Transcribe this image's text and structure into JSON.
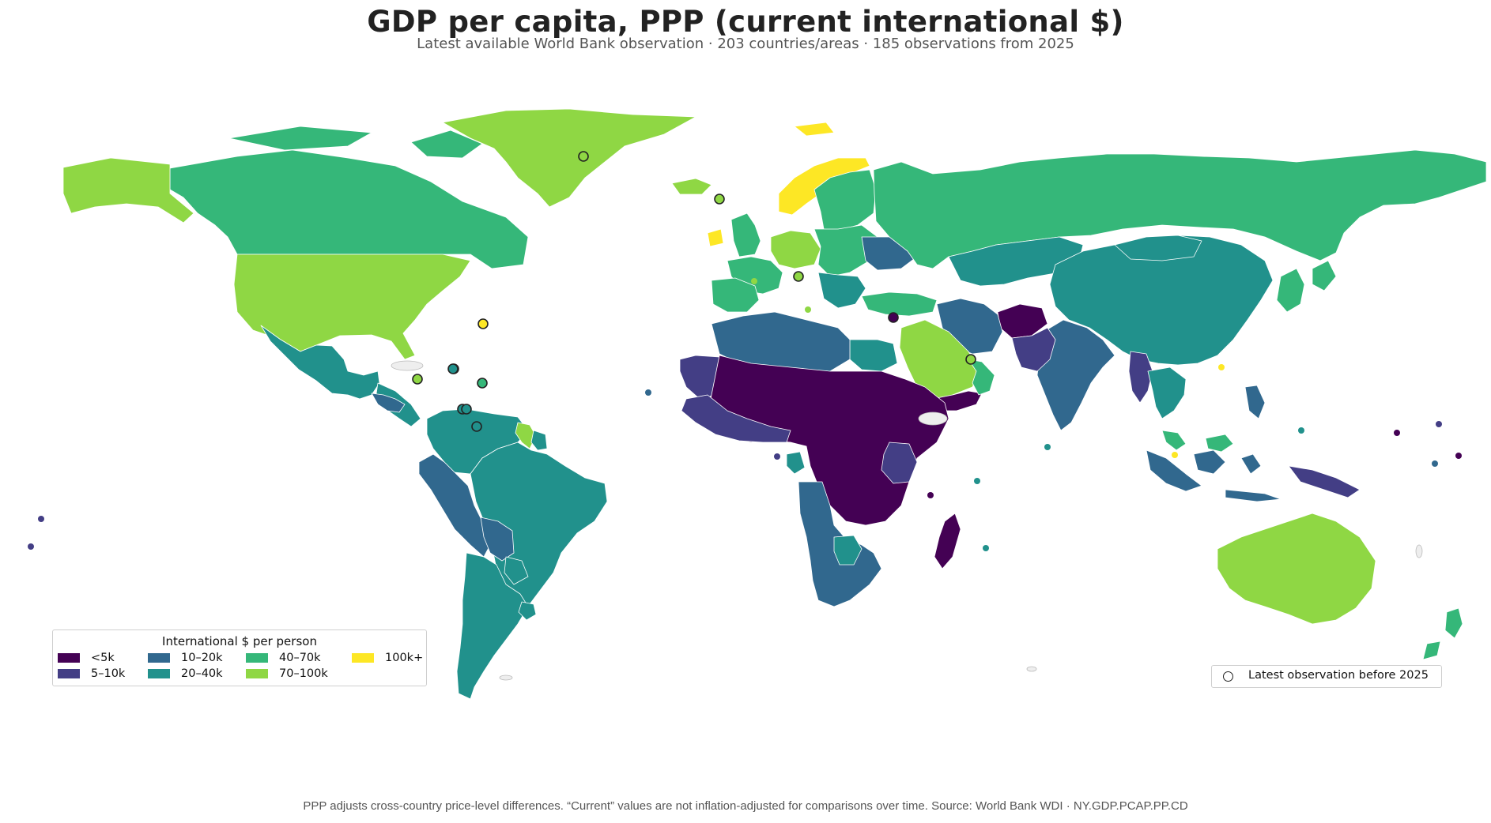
{
  "title": "GDP per capita, PPP (current international $)",
  "subtitle": "Latest available World Bank observation · 203 countries/areas · 185 observations from 2025",
  "footer": "PPP adjusts cross-country price-level differences. “Current” values are not inflation-adjusted for comparisons over time. Source: World Bank WDI · NY.GDP.PCAP.PP.CD",
  "legend": {
    "title": "International $ per person",
    "items": [
      {
        "label": "<5k",
        "color": "#440154"
      },
      {
        "label": "5–10k",
        "color": "#433e85"
      },
      {
        "label": "10–20k",
        "color": "#31688e"
      },
      {
        "label": "20–40k",
        "color": "#21918c"
      },
      {
        "label": "40–70k",
        "color": "#35b779"
      },
      {
        "label": "70–100k",
        "color": "#8fd744"
      },
      {
        "label": "100k+",
        "color": "#fde725"
      }
    ]
  },
  "marker_legend": {
    "label": "Latest observation before 2025"
  },
  "colors": {
    "no_data": "#eeeeee",
    "border": "#ffffff",
    "marker_stroke": "#222222"
  },
  "regions": [
    {
      "name": "Canada",
      "class": "40–70k"
    },
    {
      "name": "Alaska (United States)",
      "class": "70–100k"
    },
    {
      "name": "United States",
      "class": "70–100k"
    },
    {
      "name": "Greenland",
      "class": "70–100k"
    },
    {
      "name": "Mexico",
      "class": "20–40k"
    },
    {
      "name": "Central America",
      "class": "20–40k"
    },
    {
      "name": "Guatemala/Honduras",
      "class": "10–20k"
    },
    {
      "name": "Colombia/Venezuela",
      "class": "20–40k"
    },
    {
      "name": "Guyana",
      "class": "70–100k"
    },
    {
      "name": "Suriname",
      "class": "20–40k"
    },
    {
      "name": "Ecuador/Peru",
      "class": "10–20k"
    },
    {
      "name": "Brazil",
      "class": "20–40k"
    },
    {
      "name": "Bolivia",
      "class": "10–20k"
    },
    {
      "name": "Paraguay",
      "class": "20–40k"
    },
    {
      "name": "Chile/Argentina",
      "class": "20–40k"
    },
    {
      "name": "Uruguay",
      "class": "20–40k"
    },
    {
      "name": "Iceland",
      "class": "70–100k"
    },
    {
      "name": "Norway",
      "class": "100k+"
    },
    {
      "name": "Sweden/Finland",
      "class": "40–70k"
    },
    {
      "name": "United Kingdom",
      "class": "40–70k"
    },
    {
      "name": "Ireland",
      "class": "100k+"
    },
    {
      "name": "Western Europe",
      "class": "40–70k"
    },
    {
      "name": "Germany/Benelux",
      "class": "70–100k"
    },
    {
      "name": "Iberia",
      "class": "40–70k"
    },
    {
      "name": "Eastern Europe",
      "class": "40–70k"
    },
    {
      "name": "Ukraine",
      "class": "10–20k"
    },
    {
      "name": "Balkans",
      "class": "20–40k"
    },
    {
      "name": "Turkey",
      "class": "40–70k"
    },
    {
      "name": "Russia",
      "class": "40–70k"
    },
    {
      "name": "Kazakhstan/Central Asia",
      "class": "20–40k"
    },
    {
      "name": "Afghanistan",
      "class": "<5k"
    },
    {
      "name": "Iran",
      "class": "10–20k"
    },
    {
      "name": "Saudi Arabia",
      "class": "70–100k"
    },
    {
      "name": "Yemen",
      "class": "<5k"
    },
    {
      "name": "Oman/UAE",
      "class": "40–70k"
    },
    {
      "name": "Egypt",
      "class": "20–40k"
    },
    {
      "name": "North Africa",
      "class": "10–20k"
    },
    {
      "name": "Mauritania",
      "class": "5–10k"
    },
    {
      "name": "Sahel and Central Africa",
      "class": "<5k"
    },
    {
      "name": "West Africa",
      "class": "5–10k"
    },
    {
      "name": "Gabon",
      "class": "20–40k"
    },
    {
      "name": "Angola/Namibia/South Africa",
      "class": "10–20k"
    },
    {
      "name": "Botswana",
      "class": "20–40k"
    },
    {
      "name": "Kenya/Tanzania",
      "class": "5–10k"
    },
    {
      "name": "Madagascar",
      "class": "<5k"
    },
    {
      "name": "India",
      "class": "10–20k"
    },
    {
      "name": "Pakistan",
      "class": "5–10k"
    },
    {
      "name": "China",
      "class": "20–40k"
    },
    {
      "name": "Mongolia",
      "class": "20–40k"
    },
    {
      "name": "Myanmar",
      "class": "5–10k"
    },
    {
      "name": "Thailand/Vietnam",
      "class": "20–40k"
    },
    {
      "name": "Malaysia",
      "class": "40–70k"
    },
    {
      "name": "Indonesia",
      "class": "10–20k"
    },
    {
      "name": "Philippines",
      "class": "10–20k"
    },
    {
      "name": "Papua New Guinea",
      "class": "5–10k"
    },
    {
      "name": "Japan/Korea",
      "class": "40–70k"
    },
    {
      "name": "Australia",
      "class": "70–100k"
    },
    {
      "name": "New Zealand",
      "class": "40–70k"
    }
  ],
  "pre2025_markers": [
    {
      "name": "Greenland marker",
      "class": "70–100k"
    },
    {
      "name": "Faroe Islands marker",
      "class": "70–100k"
    },
    {
      "name": "San Marino marker",
      "class": "70–100k"
    },
    {
      "name": "Bermuda marker",
      "class": "100k+"
    },
    {
      "name": "Cayman Islands marker",
      "class": "70–100k"
    },
    {
      "name": "Turks and Caicos marker",
      "class": "40–70k"
    },
    {
      "name": "Puerto Rico marker",
      "class": "20–40k"
    },
    {
      "name": "British Virgin Islands marker",
      "class": "40–70k"
    },
    {
      "name": "Aruba marker",
      "class": "20–40k"
    },
    {
      "name": "Curaçao marker",
      "class": "20–40k"
    },
    {
      "name": "Venezuela marker",
      "class": "20–40k"
    },
    {
      "name": "Syria marker",
      "class": "<5k"
    },
    {
      "name": "Qatar marker",
      "class": "70–100k"
    }
  ]
}
